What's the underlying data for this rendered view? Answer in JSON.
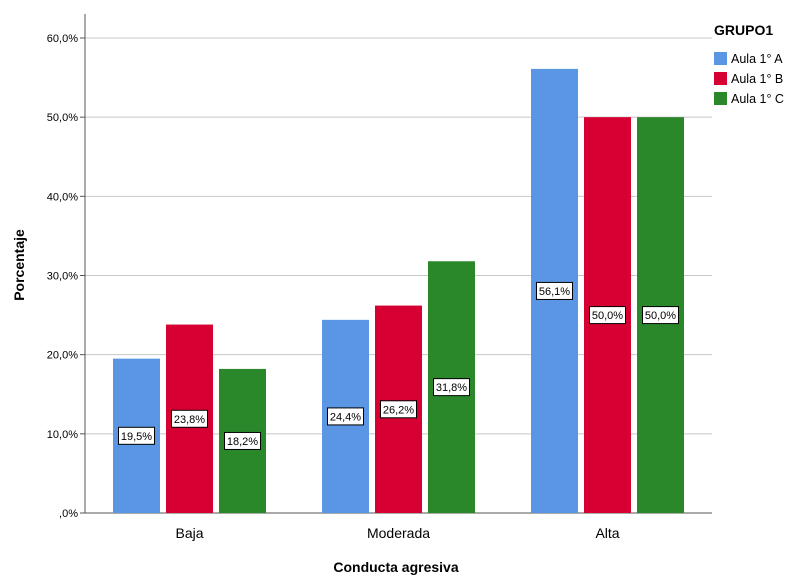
{
  "chart_data": {
    "type": "bar",
    "xlabel": "Conducta agresiva",
    "ylabel": "Porcentaje",
    "ylim": [
      0,
      60
    ],
    "yticks": [
      ",0%",
      "10,0%",
      "20,0%",
      "30,0%",
      "40,0%",
      "50,0%",
      "60,0%"
    ],
    "ytick_values": [
      0,
      10,
      20,
      30,
      40,
      50,
      60
    ],
    "grid": true,
    "categories": [
      "Baja",
      "Moderada",
      "Alta"
    ],
    "legend": {
      "title": "GRUPO1",
      "placement": "top-right"
    },
    "series": [
      {
        "name": "Aula 1° A",
        "color": "#5a96e3",
        "values": [
          19.5,
          24.4,
          56.1
        ],
        "labels": [
          "19,5%",
          "24,4%",
          "56,1%"
        ]
      },
      {
        "name": "Aula 1° B",
        "color": "#d70032",
        "values": [
          23.8,
          26.2,
          50.0
        ],
        "labels": [
          "23,8%",
          "26,2%",
          "50,0%"
        ]
      },
      {
        "name": "Aula 1° C",
        "color": "#2a882a",
        "values": [
          18.2,
          31.8,
          50.0
        ],
        "labels": [
          "18,2%",
          "31,8%",
          "50,0%"
        ]
      }
    ]
  }
}
